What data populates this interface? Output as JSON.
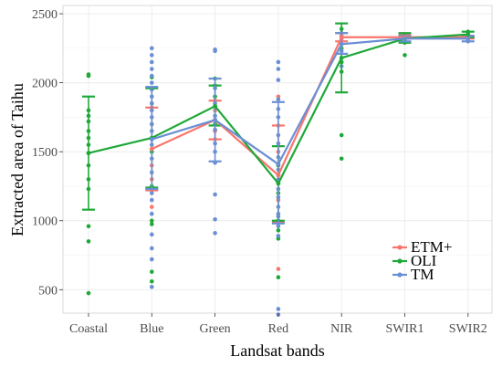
{
  "chart_data": {
    "type": "line",
    "title": "",
    "xlabel": "Landsat bands",
    "ylabel": "Extracted area of Taihu",
    "categories": [
      "Coastal",
      "Blue",
      "Green",
      "Red",
      "NIR",
      "SWIR1",
      "SWIR2"
    ],
    "ylim": [
      330,
      2560
    ],
    "yticks": [
      500,
      1000,
      1500,
      2000,
      2500
    ],
    "grid": true,
    "legend_position": "bottom-right",
    "series": [
      {
        "name": "ETM+",
        "color": "#f8766d",
        "points": [
          {
            "category": "Blue",
            "value": 1520
          },
          {
            "category": "Green",
            "value": 1730
          },
          {
            "category": "Red",
            "value": 1330
          },
          {
            "category": "NIR",
            "value": 2330
          },
          {
            "category": "SWIR1",
            "value": 2330
          },
          {
            "category": "SWIR2",
            "value": 2330
          }
        ],
        "error_bars": [
          {
            "category": "Blue",
            "low": 1220,
            "high": 1820
          },
          {
            "category": "Green",
            "low": 1590,
            "high": 1870
          },
          {
            "category": "Red",
            "low": 990,
            "high": 1690
          },
          {
            "category": "NIR",
            "low": 2300,
            "high": 2360
          },
          {
            "category": "SWIR1",
            "low": 2320,
            "high": 2350
          },
          {
            "category": "SWIR2",
            "low": 2320,
            "high": 2340
          }
        ],
        "samples": [
          {
            "category": "Blue",
            "value": 1820
          },
          {
            "category": "Blue",
            "value": 1700
          },
          {
            "category": "Blue",
            "value": 1600
          },
          {
            "category": "Blue",
            "value": 1520
          },
          {
            "category": "Blue",
            "value": 1400
          },
          {
            "category": "Blue",
            "value": 1300
          },
          {
            "category": "Blue",
            "value": 1220
          },
          {
            "category": "Blue",
            "value": 1100
          },
          {
            "category": "Green",
            "value": 1870
          },
          {
            "category": "Green",
            "value": 1800
          },
          {
            "category": "Green",
            "value": 1730
          },
          {
            "category": "Green",
            "value": 1650
          },
          {
            "category": "Green",
            "value": 1590
          },
          {
            "category": "Red",
            "value": 1900
          },
          {
            "category": "Red",
            "value": 1690
          },
          {
            "category": "Red",
            "value": 1500
          },
          {
            "category": "Red",
            "value": 1330
          },
          {
            "category": "Red",
            "value": 1150
          },
          {
            "category": "Red",
            "value": 990
          },
          {
            "category": "Red",
            "value": 650
          },
          {
            "category": "NIR",
            "value": 2340
          },
          {
            "category": "NIR",
            "value": 2320
          },
          {
            "category": "SWIR1",
            "value": 2340
          },
          {
            "category": "SWIR2",
            "value": 2335
          }
        ]
      },
      {
        "name": "OLI",
        "color": "#1ea838",
        "points": [
          {
            "category": "Coastal",
            "value": 1490
          },
          {
            "category": "Blue",
            "value": 1600
          },
          {
            "category": "Green",
            "value": 1830
          },
          {
            "category": "Red",
            "value": 1270
          },
          {
            "category": "NIR",
            "value": 2180
          },
          {
            "category": "SWIR1",
            "value": 2320
          },
          {
            "category": "SWIR2",
            "value": 2350
          }
        ],
        "error_bars": [
          {
            "category": "Coastal",
            "low": 1080,
            "high": 1900
          },
          {
            "category": "Blue",
            "low": 1240,
            "high": 1960
          },
          {
            "category": "Green",
            "low": 1690,
            "high": 1980
          },
          {
            "category": "Red",
            "low": 1000,
            "high": 1540
          },
          {
            "category": "NIR",
            "low": 1930,
            "high": 2430
          },
          {
            "category": "SWIR1",
            "low": 2290,
            "high": 2360
          },
          {
            "category": "SWIR2",
            "low": 2330,
            "high": 2370
          }
        ],
        "samples": [
          {
            "category": "Coastal",
            "value": 2060
          },
          {
            "category": "Coastal",
            "value": 2050
          },
          {
            "category": "Coastal",
            "value": 1800
          },
          {
            "category": "Coastal",
            "value": 1760
          },
          {
            "category": "Coastal",
            "value": 1720
          },
          {
            "category": "Coastal",
            "value": 1650
          },
          {
            "category": "Coastal",
            "value": 1600
          },
          {
            "category": "Coastal",
            "value": 1550
          },
          {
            "category": "Coastal",
            "value": 1490
          },
          {
            "category": "Coastal",
            "value": 1400
          },
          {
            "category": "Coastal",
            "value": 1300
          },
          {
            "category": "Coastal",
            "value": 1230
          },
          {
            "category": "Coastal",
            "value": 960
          },
          {
            "category": "Coastal",
            "value": 850
          },
          {
            "category": "Coastal",
            "value": 475
          },
          {
            "category": "Blue",
            "value": 2040
          },
          {
            "category": "Blue",
            "value": 1850
          },
          {
            "category": "Blue",
            "value": 1500
          },
          {
            "category": "Blue",
            "value": 1250
          },
          {
            "category": "Blue",
            "value": 1000
          },
          {
            "category": "Blue",
            "value": 975
          },
          {
            "category": "Blue",
            "value": 630
          },
          {
            "category": "Blue",
            "value": 560
          },
          {
            "category": "Green",
            "value": 2030
          },
          {
            "category": "Green",
            "value": 1980
          },
          {
            "category": "Green",
            "value": 1900
          },
          {
            "category": "Green",
            "value": 1700
          },
          {
            "category": "Red",
            "value": 1400
          },
          {
            "category": "Red",
            "value": 1200
          },
          {
            "category": "Red",
            "value": 1000
          },
          {
            "category": "Red",
            "value": 930
          },
          {
            "category": "Red",
            "value": 870
          },
          {
            "category": "Red",
            "value": 590
          },
          {
            "category": "NIR",
            "value": 2390
          },
          {
            "category": "NIR",
            "value": 2250
          },
          {
            "category": "NIR",
            "value": 2150
          },
          {
            "category": "NIR",
            "value": 2080
          },
          {
            "category": "NIR",
            "value": 1620
          },
          {
            "category": "NIR",
            "value": 1450
          },
          {
            "category": "SWIR1",
            "value": 2350
          },
          {
            "category": "SWIR1",
            "value": 2290
          },
          {
            "category": "SWIR1",
            "value": 2200
          },
          {
            "category": "SWIR2",
            "value": 2370
          },
          {
            "category": "SWIR2",
            "value": 2340
          }
        ]
      },
      {
        "name": "TM",
        "color": "#6a8fd4",
        "points": [
          {
            "category": "Blue",
            "value": 1590
          },
          {
            "category": "Green",
            "value": 1730
          },
          {
            "category": "Red",
            "value": 1410
          },
          {
            "category": "NIR",
            "value": 2280
          },
          {
            "category": "SWIR1",
            "value": 2320
          },
          {
            "category": "SWIR2",
            "value": 2320
          }
        ],
        "error_bars": [
          {
            "category": "Blue",
            "low": 1230,
            "high": 1970
          },
          {
            "category": "Green",
            "low": 1430,
            "high": 2030
          },
          {
            "category": "Red",
            "low": 980,
            "high": 1860
          },
          {
            "category": "NIR",
            "low": 2210,
            "high": 2360
          },
          {
            "category": "SWIR1",
            "low": 2300,
            "high": 2340
          },
          {
            "category": "SWIR2",
            "low": 2300,
            "high": 2340
          }
        ],
        "samples": [
          {
            "category": "Blue",
            "value": 2250
          },
          {
            "category": "Blue",
            "value": 2200
          },
          {
            "category": "Blue",
            "value": 2150
          },
          {
            "category": "Blue",
            "value": 2100
          },
          {
            "category": "Blue",
            "value": 2050
          },
          {
            "category": "Blue",
            "value": 2000
          },
          {
            "category": "Blue",
            "value": 1950
          },
          {
            "category": "Blue",
            "value": 1900
          },
          {
            "category": "Blue",
            "value": 1850
          },
          {
            "category": "Blue",
            "value": 1800
          },
          {
            "category": "Blue",
            "value": 1750
          },
          {
            "category": "Blue",
            "value": 1700
          },
          {
            "category": "Blue",
            "value": 1650
          },
          {
            "category": "Blue",
            "value": 1600
          },
          {
            "category": "Blue",
            "value": 1550
          },
          {
            "category": "Blue",
            "value": 1450
          },
          {
            "category": "Blue",
            "value": 1350
          },
          {
            "category": "Blue",
            "value": 1200
          },
          {
            "category": "Blue",
            "value": 1150
          },
          {
            "category": "Blue",
            "value": 1050
          },
          {
            "category": "Blue",
            "value": 900
          },
          {
            "category": "Blue",
            "value": 800
          },
          {
            "category": "Blue",
            "value": 720
          },
          {
            "category": "Blue",
            "value": 520
          },
          {
            "category": "Green",
            "value": 2240
          },
          {
            "category": "Green",
            "value": 2230
          },
          {
            "category": "Green",
            "value": 1960
          },
          {
            "category": "Green",
            "value": 1850
          },
          {
            "category": "Green",
            "value": 1760
          },
          {
            "category": "Green",
            "value": 1660
          },
          {
            "category": "Green",
            "value": 1560
          },
          {
            "category": "Green",
            "value": 1500
          },
          {
            "category": "Green",
            "value": 1420
          },
          {
            "category": "Green",
            "value": 1190
          },
          {
            "category": "Green",
            "value": 1010
          },
          {
            "category": "Green",
            "value": 910
          },
          {
            "category": "Red",
            "value": 2150
          },
          {
            "category": "Red",
            "value": 2100
          },
          {
            "category": "Red",
            "value": 2020
          },
          {
            "category": "Red",
            "value": 1880
          },
          {
            "category": "Red",
            "value": 1810
          },
          {
            "category": "Red",
            "value": 1750
          },
          {
            "category": "Red",
            "value": 1620
          },
          {
            "category": "Red",
            "value": 1560
          },
          {
            "category": "Red",
            "value": 1460
          },
          {
            "category": "Red",
            "value": 1370
          },
          {
            "category": "Red",
            "value": 1300
          },
          {
            "category": "Red",
            "value": 1230
          },
          {
            "category": "Red",
            "value": 1170
          },
          {
            "category": "Red",
            "value": 1100
          },
          {
            "category": "Red",
            "value": 1050
          },
          {
            "category": "Red",
            "value": 1030
          },
          {
            "category": "Red",
            "value": 960
          },
          {
            "category": "Red",
            "value": 890
          },
          {
            "category": "Red",
            "value": 360
          },
          {
            "category": "Red",
            "value": 320
          },
          {
            "category": "NIR",
            "value": 2360
          },
          {
            "category": "NIR",
            "value": 2300
          },
          {
            "category": "NIR",
            "value": 2230
          },
          {
            "category": "NIR",
            "value": 2120
          },
          {
            "category": "SWIR1",
            "value": 2330
          },
          {
            "category": "SWIR1",
            "value": 2310
          },
          {
            "category": "SWIR2",
            "value": 2330
          },
          {
            "category": "SWIR2",
            "value": 2300
          }
        ]
      }
    ]
  }
}
